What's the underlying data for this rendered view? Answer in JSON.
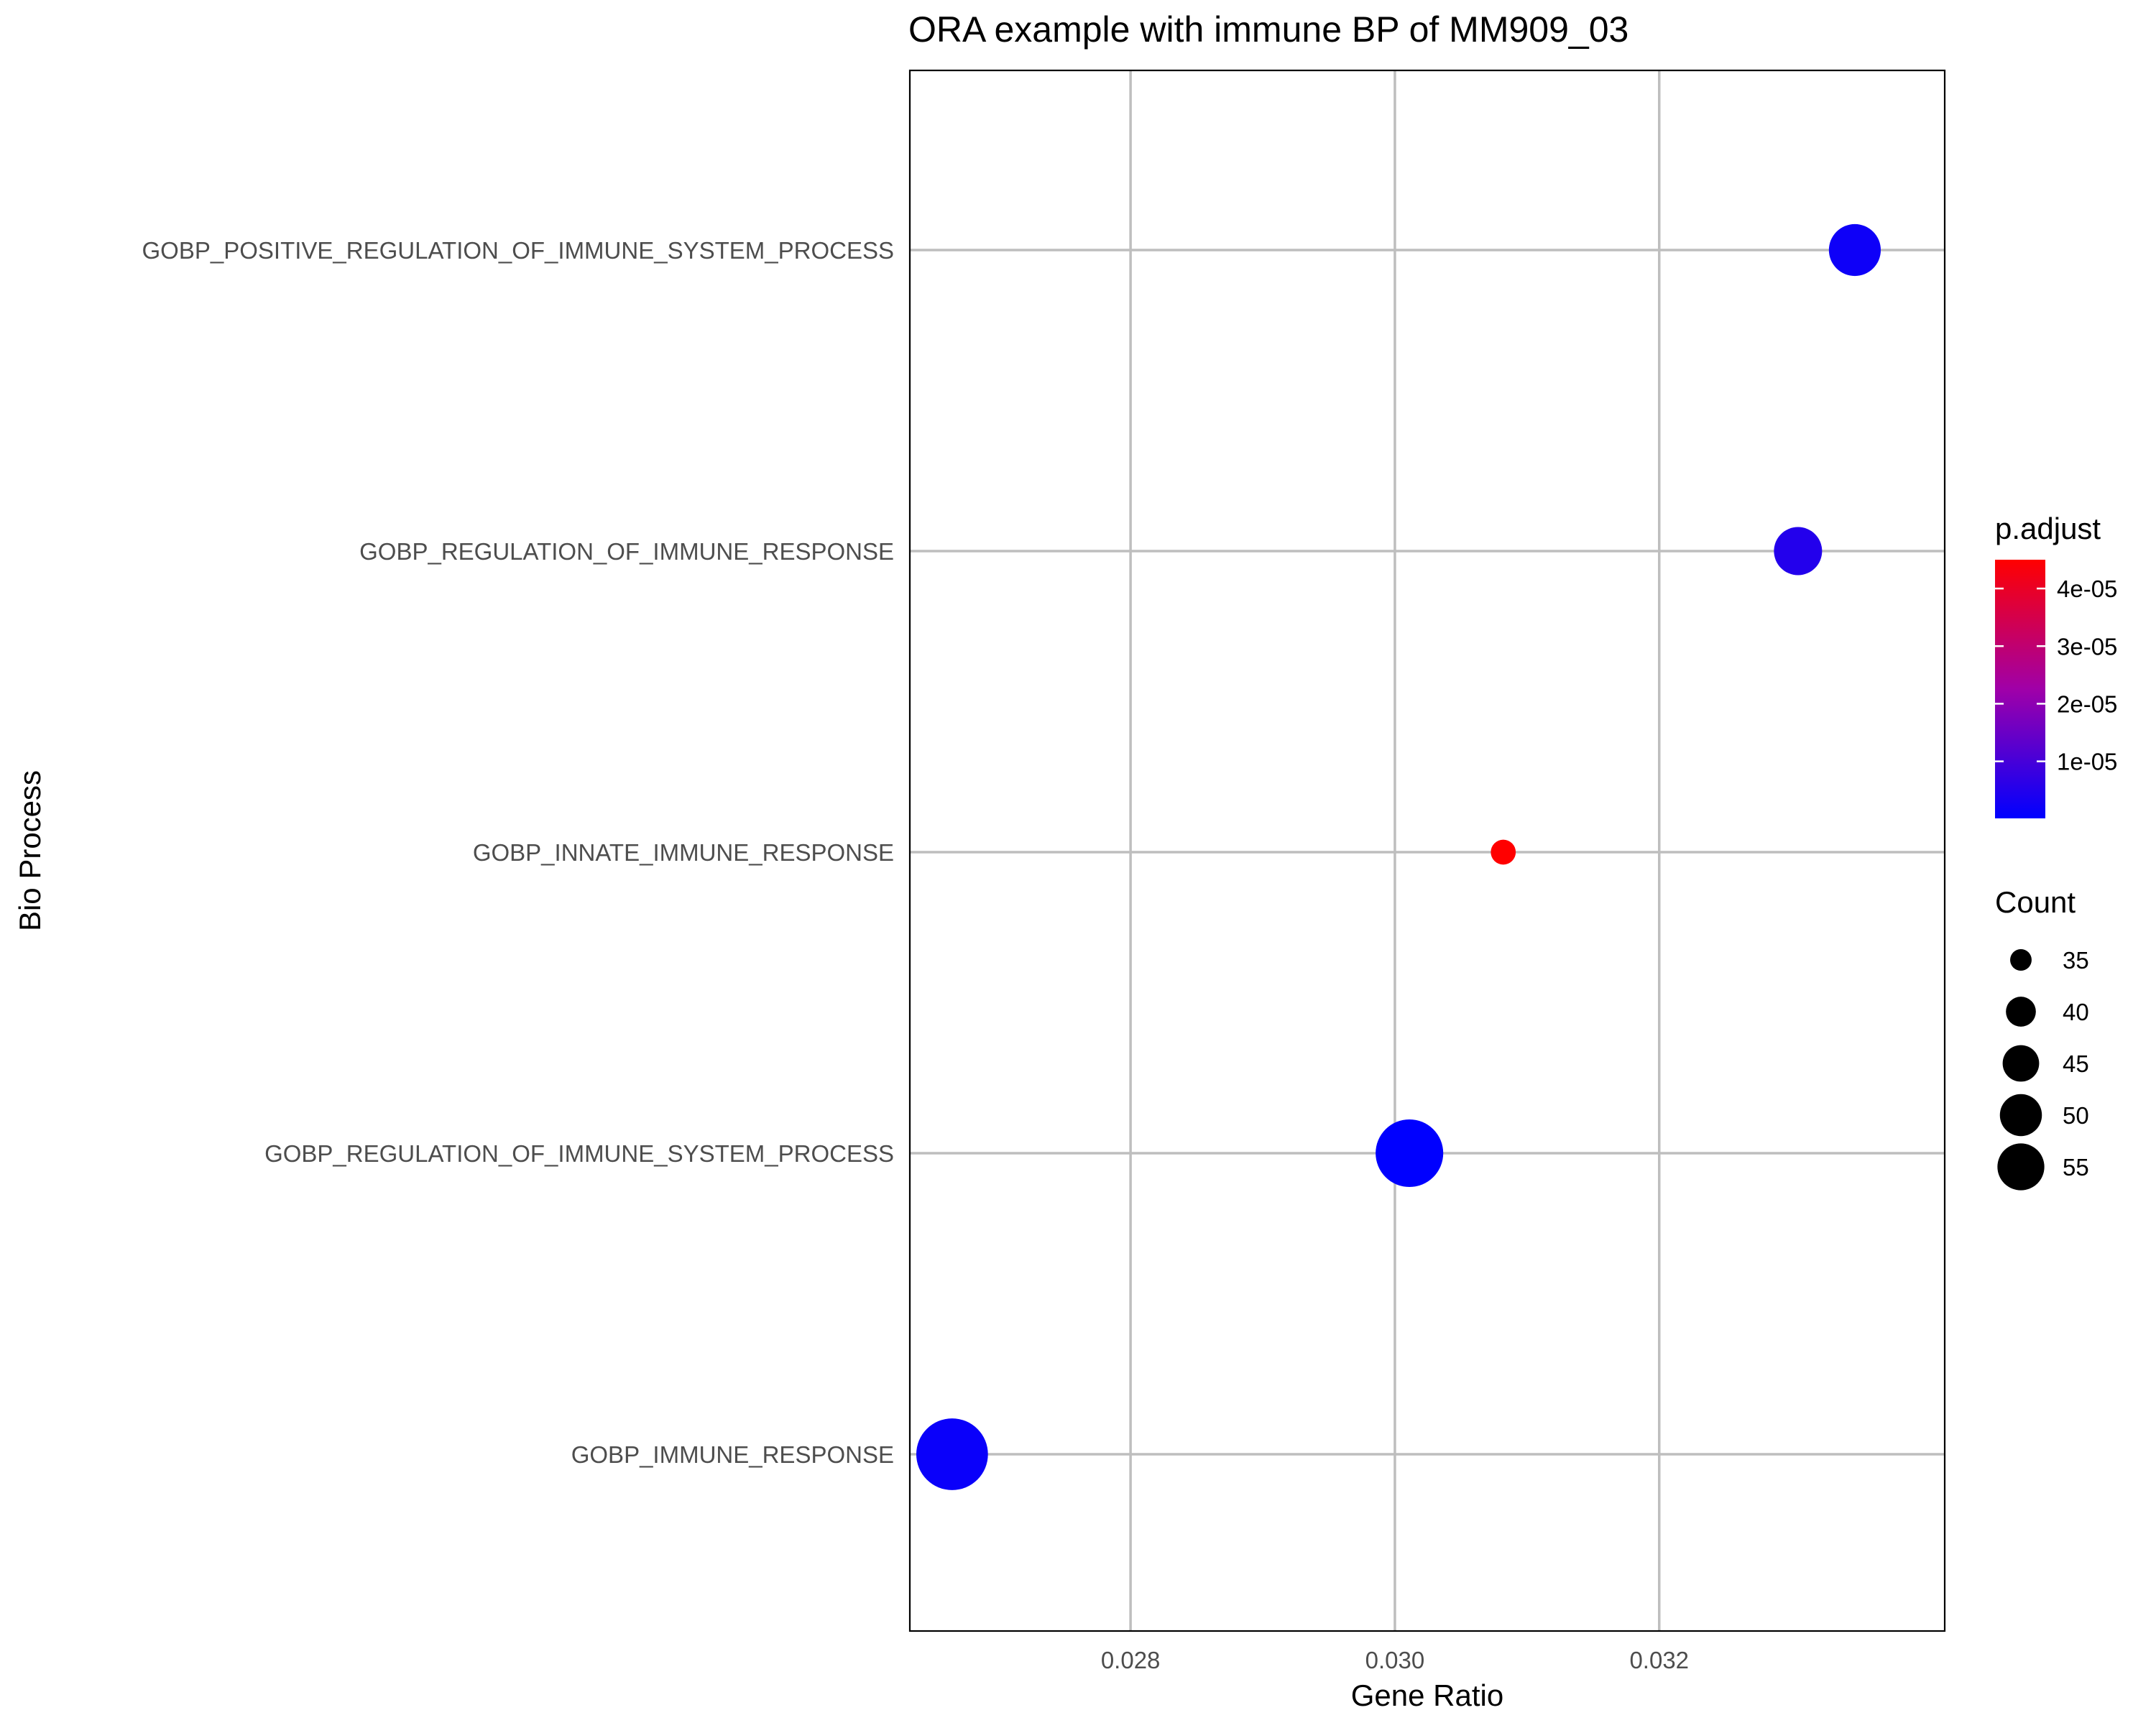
{
  "chart_data": {
    "type": "scatter",
    "title": "ORA example with immune BP of MM909_03",
    "xlabel": "Gene Ratio",
    "ylabel": "Bio Process",
    "xlim": [
      0.02633,
      0.03416
    ],
    "x_ticks": [
      0.028,
      0.03,
      0.032
    ],
    "x_tick_labels": [
      "0.028",
      "0.030",
      "0.032"
    ],
    "grid": true,
    "categories": [
      "GOBP_POSITIVE_REGULATION_OF_IMMUNE_SYSTEM_PROCESS",
      "GOBP_REGULATION_OF_IMMUNE_RESPONSE",
      "GOBP_INNATE_IMMUNE_RESPONSE",
      "GOBP_REGULATION_OF_IMMUNE_SYSTEM_PROCESS",
      "GOBP_IMMUNE_RESPONSE"
    ],
    "points": [
      {
        "category": "GOBP_POSITIVE_REGULATION_OF_IMMUNE_SYSTEM_PROCESS",
        "gene_ratio": 0.03348,
        "count": 44,
        "p_adjust": 2e-06
      },
      {
        "category": "GOBP_REGULATION_OF_IMMUNE_RESPONSE",
        "gene_ratio": 0.03305,
        "count": 42,
        "p_adjust": 5e-06
      },
      {
        "category": "GOBP_INNATE_IMMUNE_RESPONSE",
        "gene_ratio": 0.03082,
        "count": 33,
        "p_adjust": 4.5e-05
      },
      {
        "category": "GOBP_REGULATION_OF_IMMUNE_SYSTEM_PROCESS",
        "gene_ratio": 0.03011,
        "count": 54,
        "p_adjust": 1e-07
      },
      {
        "category": "GOBP_IMMUNE_RESPONSE",
        "gene_ratio": 0.02665,
        "count": 57,
        "p_adjust": 1.5e-06
      }
    ],
    "color_legend": {
      "title": "p.adjust",
      "range": [
        1e-07,
        4.5e-05
      ],
      "low_color": "#0000FF",
      "mid_color": "#A000A8",
      "high_color": "#FF0000",
      "ticks": [
        1e-05,
        2e-05,
        3e-05,
        4e-05
      ],
      "tick_labels": [
        "1e-05",
        "2e-05",
        "3e-05",
        "4e-05"
      ]
    },
    "size_legend": {
      "title": "Count",
      "values": [
        35,
        40,
        45,
        50,
        55
      ],
      "labels": [
        "35",
        "40",
        "45",
        "50",
        "55"
      ]
    },
    "colors": {
      "grid": "#BEBEBE",
      "panel_border": "#000000",
      "text": "#000000",
      "axis_text": "#4D4D4D"
    }
  }
}
